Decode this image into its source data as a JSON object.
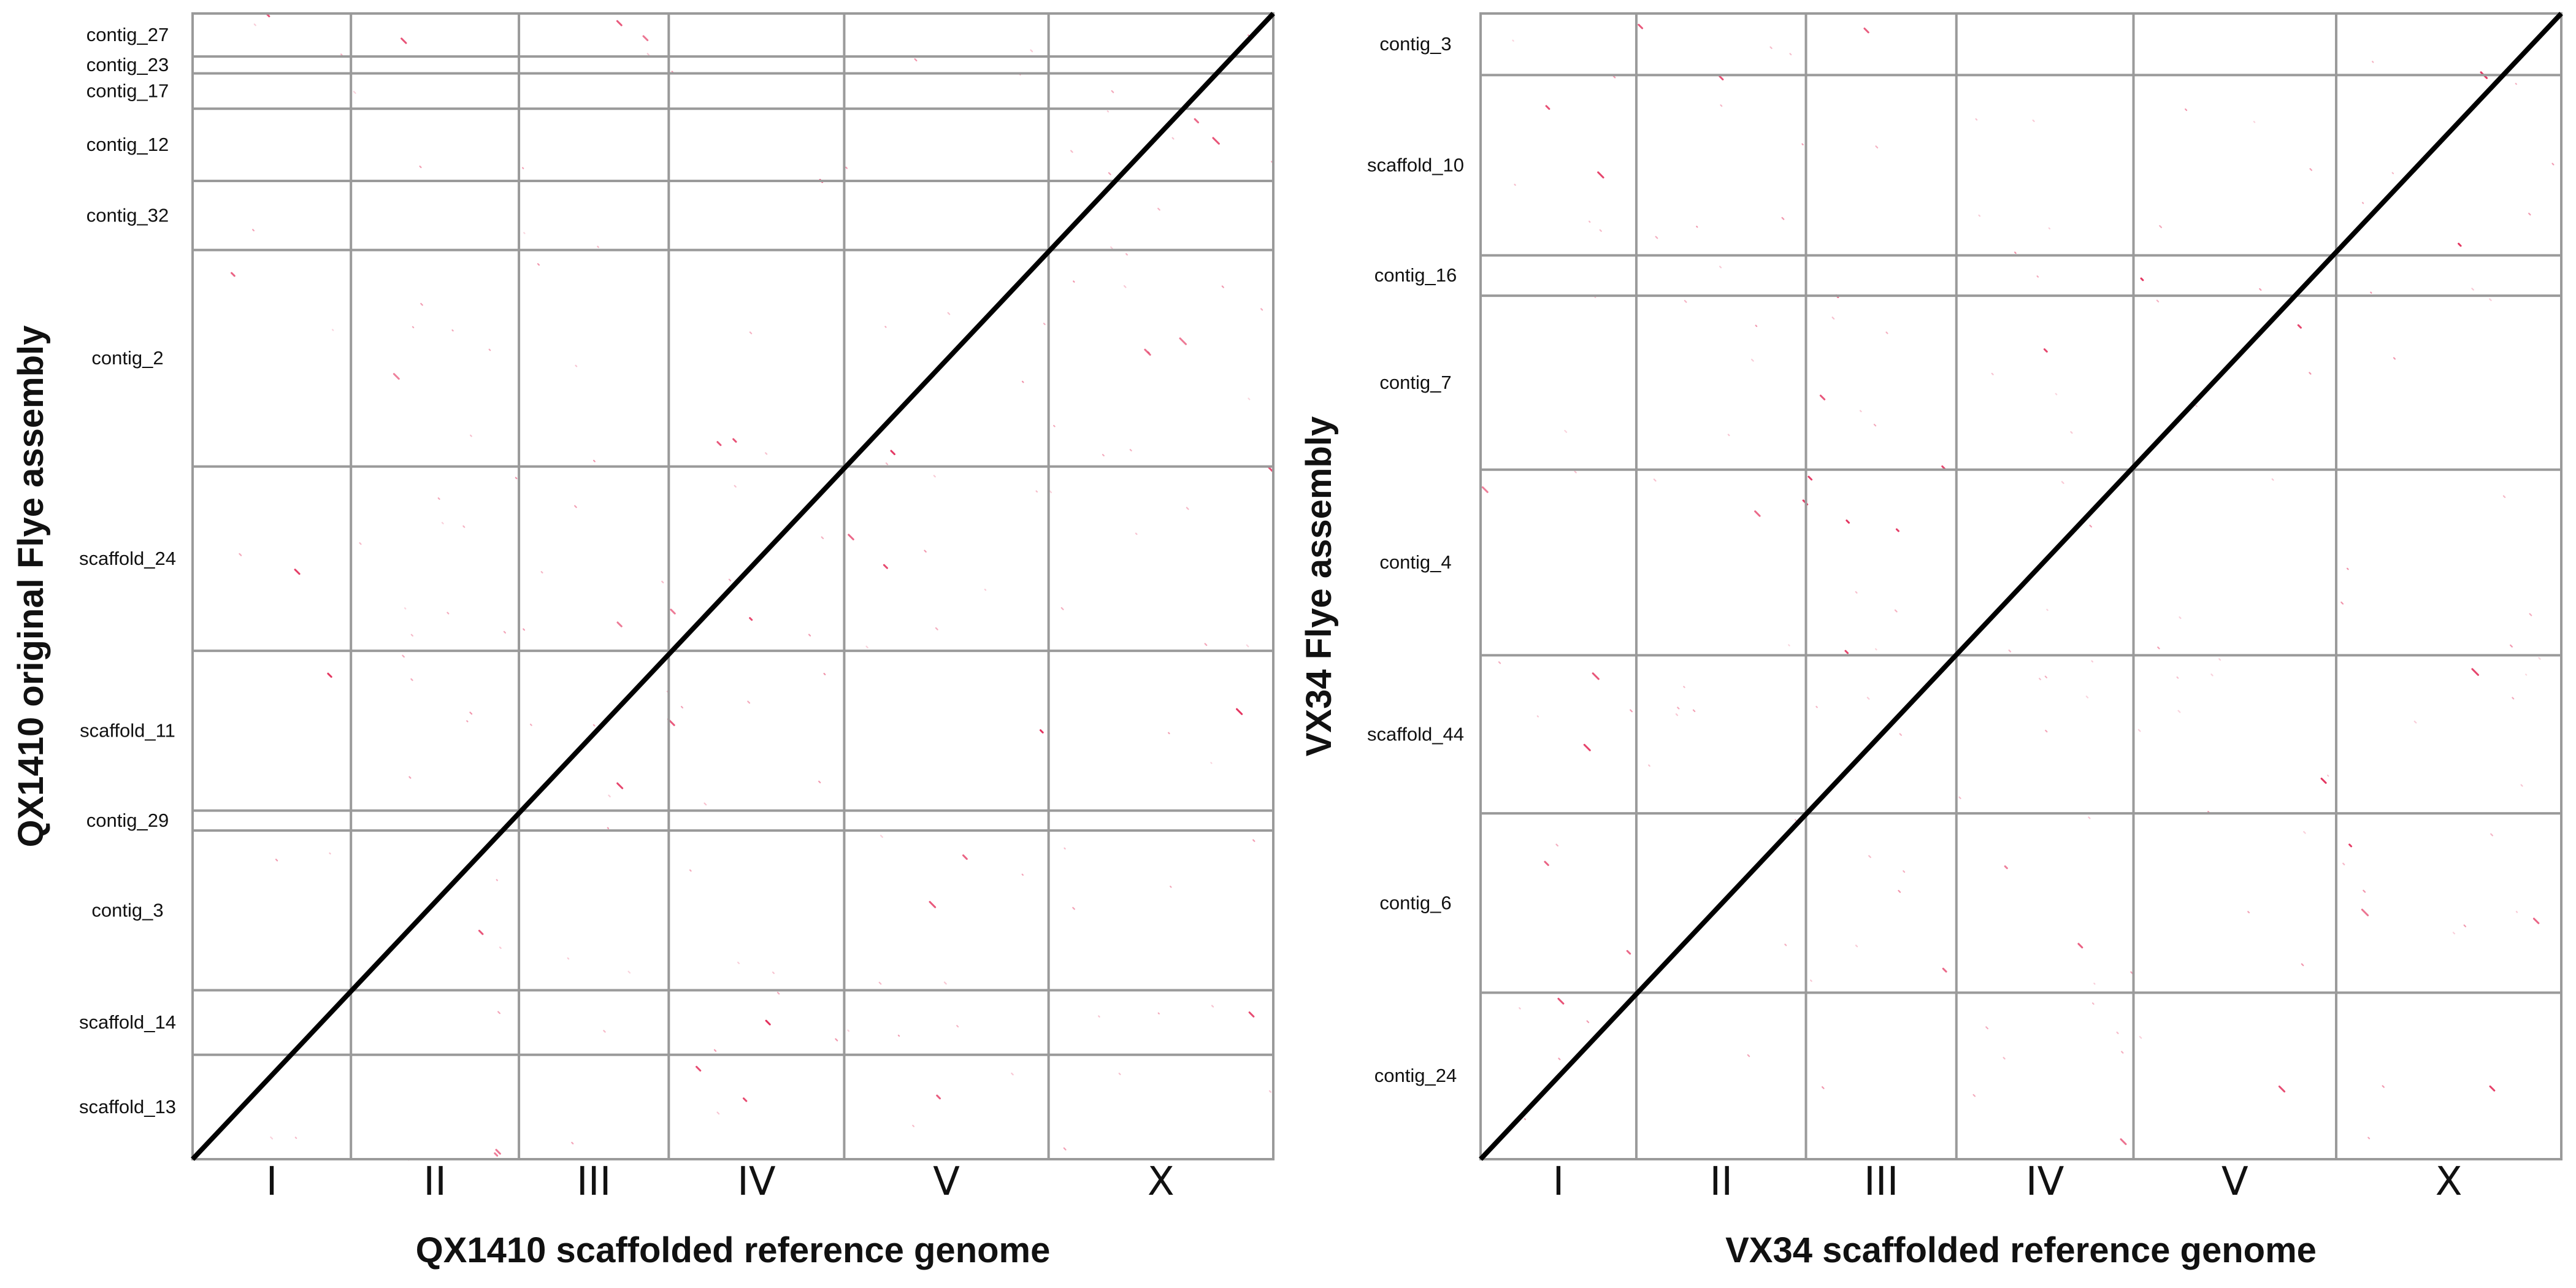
{
  "chart_data": [
    {
      "type": "scatter",
      "subtype": "dot-plot",
      "xlabel": "QX1410 scaffolded reference genome",
      "ylabel": "QX1410 original Flye assembly",
      "x_segments": [
        {
          "label": "I",
          "length": 14.8
        },
        {
          "label": "II",
          "length": 15.7
        },
        {
          "label": "III",
          "length": 14.0
        },
        {
          "label": "IV",
          "length": 16.4
        },
        {
          "label": "V",
          "length": 19.1
        },
        {
          "label": "X",
          "length": 21.0
        }
      ],
      "y_segments": [
        {
          "label": "contig_27",
          "length": 2.8
        },
        {
          "label": "contig_23",
          "length": 1.1
        },
        {
          "label": "contig_17",
          "length": 2.3
        },
        {
          "label": "contig_12",
          "length": 4.7
        },
        {
          "label": "contig_32",
          "length": 4.5
        },
        {
          "label": "contig_2",
          "length": 14.1
        },
        {
          "label": "scaffold_24",
          "length": 12.0
        },
        {
          "label": "scaffold_11",
          "length": 10.4
        },
        {
          "label": "contig_29",
          "length": 1.3
        },
        {
          "label": "contig_3",
          "length": 10.4
        },
        {
          "label": "scaffold_14",
          "length": 4.2
        },
        {
          "label": "scaffold_13",
          "length": 6.8
        }
      ],
      "diagonal_color": "#000000",
      "secondary_hit_color": "#e0194a",
      "grid": true
    },
    {
      "type": "scatter",
      "subtype": "dot-plot",
      "xlabel": "VX34 scaffolded reference genome",
      "ylabel": "VX34 Flye assembly",
      "x_segments": [
        {
          "label": "I",
          "length": 14.6
        },
        {
          "label": "II",
          "length": 15.9
        },
        {
          "label": "III",
          "length": 14.1
        },
        {
          "label": "IV",
          "length": 16.6
        },
        {
          "label": "V",
          "length": 19.0
        },
        {
          "label": "X",
          "length": 21.1
        }
      ],
      "y_segments": [
        {
          "label": "contig_3",
          "length": 5.8
        },
        {
          "label": "scaffold_10",
          "length": 17.0
        },
        {
          "label": "contig_16",
          "length": 3.8
        },
        {
          "label": "contig_7",
          "length": 16.4
        },
        {
          "label": "contig_4",
          "length": 17.5
        },
        {
          "label": "scaffold_44",
          "length": 14.9
        },
        {
          "label": "contig_6",
          "length": 16.9
        },
        {
          "label": "contig_24",
          "length": 15.7
        }
      ],
      "diagonal_color": "#000000",
      "secondary_hit_color": "#e0194a",
      "grid": true
    }
  ]
}
